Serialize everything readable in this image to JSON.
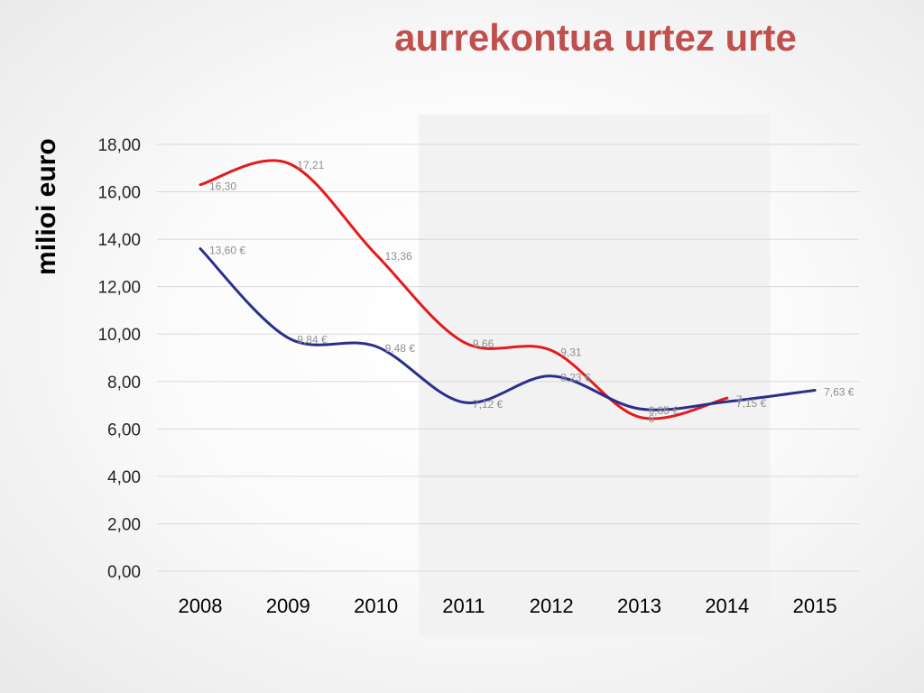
{
  "slide": {
    "title": "aurrekontua urtez urte",
    "y_axis_title": "milioi euro"
  },
  "chart_data": {
    "type": "line",
    "title": "aurrekontua urtez urte",
    "xlabel": "",
    "ylabel": "milioi euro",
    "categories": [
      "2008",
      "2009",
      "2010",
      "2011",
      "2012",
      "2013",
      "2014",
      "2015"
    ],
    "ylim": [
      0,
      18
    ],
    "yticks": [
      "0,00",
      "2,00",
      "4,00",
      "6,00",
      "8,00",
      "10,00",
      "12,00",
      "14,00",
      "16,00",
      "18,00"
    ],
    "grid": true,
    "smooth": true,
    "highlight_band": {
      "from": "2011",
      "to": "2014",
      "color": "#f2f2f2"
    },
    "series": [
      {
        "color": "#e41a1c",
        "values": [
          16.3,
          17.21,
          13.36,
          9.66,
          9.31,
          6.5,
          7.3,
          null
        ],
        "labels": [
          "16,30",
          "17,21",
          "13,36",
          "9,66",
          "9,31",
          "6",
          "7",
          ""
        ]
      },
      {
        "color": "#2b2f8c",
        "values": [
          13.6,
          9.84,
          9.48,
          7.12,
          8.23,
          6.85,
          7.15,
          7.63
        ],
        "labels": [
          "13,60 €",
          "9,84 €",
          "9,48 €",
          "7,12 €",
          "8,23 €",
          "6,85 €",
          "7,15 €",
          "7,63 €"
        ]
      }
    ]
  }
}
